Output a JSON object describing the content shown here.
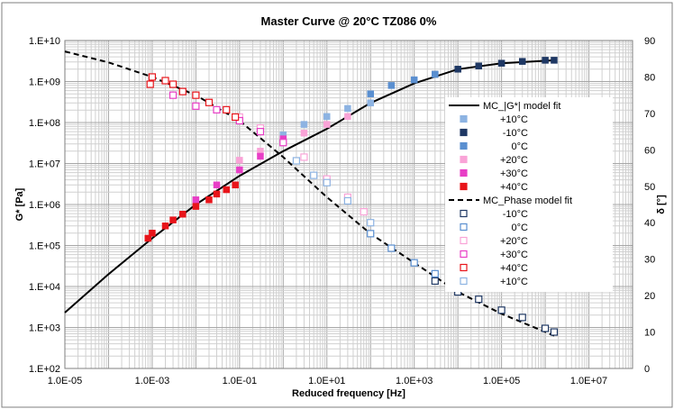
{
  "chart_data": {
    "type": "scatter",
    "title": "Master Curve @ 20°C TZ086 0%",
    "xlabel": "Reduced frequency [Hz]",
    "ylabel_left": "G* [Pa]",
    "ylabel_right": "δ [°]",
    "x_scale": "log",
    "y_left_scale": "log",
    "xlim": [
      1e-05,
      100000000.0
    ],
    "ylim_left": [
      100,
      10000000000.0
    ],
    "ylim_right": [
      0,
      90
    ],
    "grid": true,
    "legend_position": "right",
    "x_ticks": [
      "1.0E-05",
      "1.0E-03",
      "1.0E-01",
      "1.0E+01",
      "1.0E+03",
      "1.0E+05",
      "1.0E+07"
    ],
    "y_left_ticks": [
      "1.E+02",
      "1.E+03",
      "1.E+04",
      "1.E+05",
      "1.E+06",
      "1.E+07",
      "1.E+08",
      "1.E+09",
      "1.E+10"
    ],
    "y_right_ticks": [
      "0",
      "10",
      "20",
      "30",
      "40",
      "50",
      "60",
      "70",
      "80",
      "90"
    ],
    "model_fit_G": {
      "name": "MC_|G*| model fit",
      "x": [
        1e-05,
        0.0001,
        0.001,
        0.01,
        0.1,
        1,
        10,
        100,
        1000,
        10000,
        100000,
        1600000
      ],
      "y": [
        2300,
        20000,
        150000,
        1000000,
        5000000,
        20000000,
        70000000,
        300000000,
        900000000,
        2000000000,
        2800000000,
        3300000000
      ]
    },
    "model_fit_phase": {
      "name": "MC_Phase model fit",
      "x": [
        1e-05,
        0.0001,
        0.001,
        0.01,
        0.1,
        1,
        10,
        100,
        1000,
        10000,
        100000,
        1600000
      ],
      "y": [
        87,
        84,
        80,
        75,
        68,
        58,
        47,
        37,
        29,
        21,
        15,
        9
      ]
    },
    "series_G": [
      {
        "name": "+10°C",
        "color": "#8DB3E2",
        "x": [
          1,
          3,
          10,
          30,
          100
        ],
        "y": [
          50000000,
          90000000,
          140000000,
          220000000,
          300000000
        ]
      },
      {
        "name": "-10°C",
        "color": "#1F3864",
        "x": [
          3000,
          10000,
          30000,
          100000,
          300000,
          1000000,
          1600000
        ],
        "y": [
          1500000000,
          2000000000,
          2400000000,
          2800000000,
          3100000000,
          3300000000,
          3300000000
        ]
      },
      {
        "name": "0°C",
        "color": "#5A8FD0",
        "x": [
          100,
          300,
          1000,
          3000
        ],
        "y": [
          500000000,
          800000000,
          1100000000,
          1500000000
        ]
      },
      {
        "name": "+20°C",
        "color": "#F9A3D7",
        "x": [
          0.1,
          0.3,
          1,
          3,
          10,
          30
        ],
        "y": [
          12000000,
          20000000,
          35000000,
          55000000,
          90000000,
          140000000
        ]
      },
      {
        "name": "+30°C",
        "color": "#E83EC6",
        "x": [
          0.01,
          0.03,
          0.1,
          0.3,
          1
        ],
        "y": [
          1300000,
          3000000,
          7000000,
          15000000,
          40000000
        ]
      },
      {
        "name": "+40°C",
        "color": "#E8141A",
        "x": [
          0.0008,
          0.001,
          0.002,
          0.003,
          0.005,
          0.01,
          0.02,
          0.03,
          0.05,
          0.08
        ],
        "y": [
          150000,
          200000,
          300000,
          420000,
          580000,
          900000,
          1300000,
          1800000,
          2300000,
          3000000
        ]
      }
    ],
    "series_phase": [
      {
        "name": "-10°C",
        "color": "#1F3864",
        "x": [
          3000,
          10000,
          30000,
          100000,
          300000,
          1000000,
          1600000
        ],
        "y": [
          24,
          21,
          19,
          16,
          14,
          11,
          10
        ]
      },
      {
        "name": "0°C",
        "color": "#5A8FD0",
        "x": [
          100,
          300,
          1000,
          3000
        ],
        "y": [
          37,
          33,
          29,
          26
        ]
      },
      {
        "name": "+20°C",
        "color": "#F9A3D7",
        "x": [
          0.1,
          0.3,
          1,
          3,
          10,
          30,
          70
        ],
        "y": [
          69,
          66,
          62,
          58,
          52,
          47,
          43
        ]
      },
      {
        "name": "+30°C",
        "color": "#E83EC6",
        "x": [
          0.003,
          0.01,
          0.03,
          0.1,
          0.3,
          1
        ],
        "y": [
          75,
          72,
          71,
          68,
          65,
          62
        ]
      },
      {
        "name": "+40°C",
        "color": "#E8141A",
        "x": [
          0.0009,
          0.001,
          0.002,
          0.003,
          0.005,
          0.01,
          0.02,
          0.05,
          0.08
        ],
        "y": [
          78,
          80,
          79,
          78,
          76,
          75,
          73,
          71,
          69
        ]
      },
      {
        "name": "+10°C",
        "color": "#8DB3E2",
        "x": [
          2,
          5,
          10,
          30,
          100
        ],
        "y": [
          57,
          53,
          51,
          46,
          40
        ]
      }
    ]
  }
}
